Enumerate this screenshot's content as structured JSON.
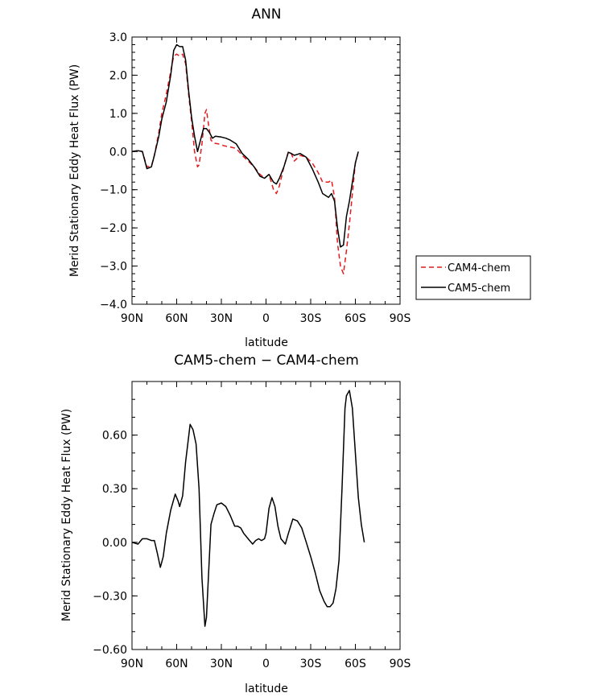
{
  "chart_data": [
    {
      "type": "line",
      "title": "ANN",
      "xlabel": "latitude",
      "ylabel": "Merid Stationary Eddy Heat Flux (PW)",
      "xlim": [
        90,
        -90
      ],
      "ylim": [
        -4,
        3
      ],
      "x_ticks": [
        90,
        60,
        30,
        0,
        -30,
        -60,
        -90
      ],
      "x_tick_labels": [
        "90N",
        "60N",
        "30N",
        "0",
        "30S",
        "60S",
        "90S"
      ],
      "y_ticks": [
        -4,
        -3,
        -2,
        -1,
        0,
        1,
        2,
        3
      ],
      "y_tick_labels": [
        "−4.0",
        "−3.0",
        "−2.0",
        "−1.0",
        "0.0",
        "1.0",
        "2.0",
        "3.0"
      ],
      "grid": false,
      "legend": "right",
      "series": [
        {
          "name": "CAM4-chem",
          "color": "#e41a1c",
          "dash": "dashed",
          "points": [
            [
              90,
              0
            ],
            [
              86,
              0.03
            ],
            [
              83,
              0
            ],
            [
              80,
              -0.4
            ],
            [
              77,
              -0.38
            ],
            [
              75,
              -0.1
            ],
            [
              72,
              0.5
            ],
            [
              70,
              1.0
            ],
            [
              67,
              1.5
            ],
            [
              64,
              2.1
            ],
            [
              62,
              2.5
            ],
            [
              60,
              2.55
            ],
            [
              58,
              2.5
            ],
            [
              56,
              2.55
            ],
            [
              54,
              2.3
            ],
            [
              52,
              1.5
            ],
            [
              50,
              0.8
            ],
            [
              48,
              0
            ],
            [
              46,
              -0.4
            ],
            [
              45,
              -0.35
            ],
            [
              43,
              0.2
            ],
            [
              41,
              1.0
            ],
            [
              40,
              1.1
            ],
            [
              39,
              0.8
            ],
            [
              37,
              0.3
            ],
            [
              35,
              0.22
            ],
            [
              32,
              0.2
            ],
            [
              28,
              0.15
            ],
            [
              24,
              0.12
            ],
            [
              20,
              0.08
            ],
            [
              16,
              -0.1
            ],
            [
              12,
              -0.25
            ],
            [
              8,
              -0.4
            ],
            [
              4,
              -0.6
            ],
            [
              1,
              -0.7
            ],
            [
              -2,
              -0.6
            ],
            [
              -5,
              -1.0
            ],
            [
              -7,
              -1.1
            ],
            [
              -9,
              -0.9
            ],
            [
              -12,
              -0.4
            ],
            [
              -15,
              0
            ],
            [
              -17,
              -0.05
            ],
            [
              -19,
              -0.25
            ],
            [
              -23,
              -0.1
            ],
            [
              -27,
              -0.15
            ],
            [
              -31,
              -0.3
            ],
            [
              -35,
              -0.55
            ],
            [
              -38,
              -0.8
            ],
            [
              -42,
              -0.8
            ],
            [
              -44,
              -0.75
            ],
            [
              -46,
              -1.2
            ],
            [
              -48,
              -2.4
            ],
            [
              -50,
              -3.0
            ],
            [
              -52,
              -3.2
            ],
            [
              -54,
              -2.6
            ],
            [
              -56,
              -1.9
            ],
            [
              -58,
              -1.1
            ],
            [
              -60,
              -0.3
            ],
            [
              -62,
              0
            ]
          ]
        },
        {
          "name": "CAM5-chem",
          "color": "#000000",
          "dash": "solid",
          "points": [
            [
              90,
              0
            ],
            [
              86,
              0.02
            ],
            [
              83,
              0
            ],
            [
              80,
              -0.45
            ],
            [
              77,
              -0.4
            ],
            [
              75,
              -0.1
            ],
            [
              72,
              0.4
            ],
            [
              70,
              0.85
            ],
            [
              67,
              1.3
            ],
            [
              64,
              2.0
            ],
            [
              62,
              2.65
            ],
            [
              60,
              2.8
            ],
            [
              58,
              2.75
            ],
            [
              56,
              2.75
            ],
            [
              54,
              2.4
            ],
            [
              52,
              1.6
            ],
            [
              50,
              0.9
            ],
            [
              48,
              0.4
            ],
            [
              46,
              0
            ],
            [
              44,
              0.3
            ],
            [
              42,
              0.6
            ],
            [
              40,
              0.6
            ],
            [
              38,
              0.5
            ],
            [
              36,
              0.35
            ],
            [
              34,
              0.4
            ],
            [
              30,
              0.38
            ],
            [
              27,
              0.35
            ],
            [
              24,
              0.3
            ],
            [
              20,
              0.2
            ],
            [
              16,
              -0.05
            ],
            [
              12,
              -0.2
            ],
            [
              8,
              -0.4
            ],
            [
              4,
              -0.65
            ],
            [
              1,
              -0.7
            ],
            [
              -2,
              -0.6
            ],
            [
              -5,
              -0.8
            ],
            [
              -7,
              -0.85
            ],
            [
              -9,
              -0.7
            ],
            [
              -12,
              -0.4
            ],
            [
              -15,
              -0.02
            ],
            [
              -17,
              -0.05
            ],
            [
              -19,
              -0.1
            ],
            [
              -23,
              -0.05
            ],
            [
              -27,
              -0.15
            ],
            [
              -31,
              -0.45
            ],
            [
              -35,
              -0.8
            ],
            [
              -38,
              -1.1
            ],
            [
              -42,
              -1.2
            ],
            [
              -44,
              -1.1
            ],
            [
              -46,
              -1.3
            ],
            [
              -48,
              -2.0
            ],
            [
              -50,
              -2.5
            ],
            [
              -52,
              -2.45
            ],
            [
              -54,
              -1.7
            ],
            [
              -56,
              -1.3
            ],
            [
              -58,
              -0.8
            ],
            [
              -60,
              -0.3
            ],
            [
              -62,
              0
            ]
          ]
        }
      ]
    },
    {
      "type": "line",
      "title": "CAM5-chem − CAM4-chem",
      "xlabel": "latitude",
      "ylabel": "Merid Stationary Eddy Heat Flux (PW)",
      "xlim": [
        90,
        -90
      ],
      "ylim": [
        -0.6,
        0.9
      ],
      "x_ticks": [
        90,
        60,
        30,
        0,
        -30,
        -60,
        -90
      ],
      "x_tick_labels": [
        "90N",
        "60N",
        "30N",
        "0",
        "30S",
        "60S",
        "90S"
      ],
      "y_ticks": [
        -0.6,
        -0.3,
        0,
        0.3,
        0.6
      ],
      "y_tick_labels": [
        "−0.60",
        "−0.30",
        "0.00",
        "0.30",
        "0.60"
      ],
      "grid": false,
      "series": [
        {
          "color": "#000000",
          "dash": "solid",
          "points": [
            [
              90,
              0
            ],
            [
              86,
              -0.01
            ],
            [
              83,
              0.02
            ],
            [
              80,
              0.02
            ],
            [
              77,
              0.01
            ],
            [
              75,
              0.01
            ],
            [
              73,
              -0.06
            ],
            [
              71,
              -0.14
            ],
            [
              69,
              -0.08
            ],
            [
              67,
              0.05
            ],
            [
              64,
              0.18
            ],
            [
              61,
              0.27
            ],
            [
              59,
              0.23
            ],
            [
              58,
              0.2
            ],
            [
              56,
              0.26
            ],
            [
              54,
              0.45
            ],
            [
              51,
              0.66
            ],
            [
              49,
              0.63
            ],
            [
              47,
              0.55
            ],
            [
              45,
              0.3
            ],
            [
              43,
              -0.2
            ],
            [
              41,
              -0.47
            ],
            [
              40,
              -0.42
            ],
            [
              37,
              0.1
            ],
            [
              35,
              0.16
            ],
            [
              33,
              0.21
            ],
            [
              30,
              0.22
            ],
            [
              27,
              0.2
            ],
            [
              24,
              0.15
            ],
            [
              21,
              0.09
            ],
            [
              19,
              0.09
            ],
            [
              17,
              0.08
            ],
            [
              15,
              0.05
            ],
            [
              13,
              0.03
            ],
            [
              11,
              0.01
            ],
            [
              9,
              -0.01
            ],
            [
              7,
              0.01
            ],
            [
              5,
              0.02
            ],
            [
              3,
              0.01
            ],
            [
              1,
              0.02
            ],
            [
              0,
              0.05
            ],
            [
              -2,
              0.19
            ],
            [
              -4,
              0.25
            ],
            [
              -6,
              0.2
            ],
            [
              -8,
              0.09
            ],
            [
              -10,
              0.02
            ],
            [
              -13,
              -0.01
            ],
            [
              -15,
              0.05
            ],
            [
              -18,
              0.13
            ],
            [
              -21,
              0.12
            ],
            [
              -24,
              0.08
            ],
            [
              -27,
              0.0
            ],
            [
              -30,
              -0.08
            ],
            [
              -33,
              -0.17
            ],
            [
              -36,
              -0.27
            ],
            [
              -39,
              -0.33
            ],
            [
              -41,
              -0.36
            ],
            [
              -43,
              -0.36
            ],
            [
              -45,
              -0.34
            ],
            [
              -47,
              -0.26
            ],
            [
              -49,
              -0.1
            ],
            [
              -51,
              0.3
            ],
            [
              -53,
              0.75
            ],
            [
              -54,
              0.82
            ],
            [
              -56,
              0.85
            ],
            [
              -58,
              0.75
            ],
            [
              -60,
              0.5
            ],
            [
              -62,
              0.25
            ],
            [
              -64,
              0.1
            ],
            [
              -66,
              0
            ]
          ]
        }
      ]
    }
  ]
}
